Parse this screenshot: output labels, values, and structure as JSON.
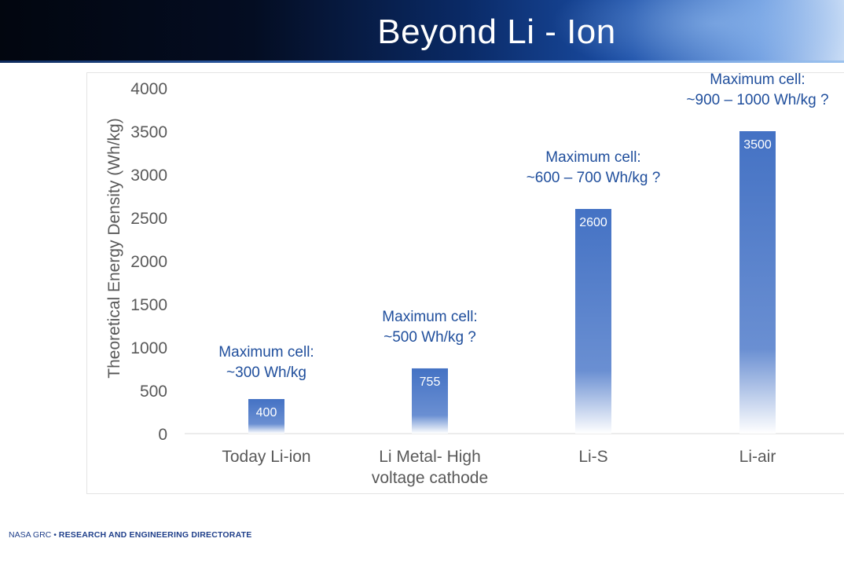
{
  "slide": {
    "title": "Beyond Li - Ion"
  },
  "footer": {
    "org": "NASA GRC",
    "separator": "•",
    "directorate": "RESEARCH AND ENGINEERING DIRECTORATE"
  },
  "chart_data": {
    "type": "bar",
    "title": "",
    "xlabel": "",
    "ylabel": "Theoretical Energy Density (Wh/kg)",
    "ylim": [
      0,
      4000
    ],
    "yticks": [
      0,
      500,
      1000,
      1500,
      2000,
      2500,
      3000,
      3500,
      4000
    ],
    "grid": false,
    "categories": [
      [
        "Today Li-ion"
      ],
      [
        "Li Metal- High",
        "voltage cathode"
      ],
      [
        "Li-S"
      ],
      [
        "Li-air"
      ]
    ],
    "values": [
      400,
      755,
      2600,
      3500
    ],
    "data_labels": [
      "400",
      "755",
      "2600",
      "3500"
    ],
    "annotations": [
      [
        "Maximum cell:",
        "~300 Wh/kg"
      ],
      [
        "Maximum cell:",
        "~500 Wh/kg ?"
      ],
      [
        "Maximum cell:",
        "~600 – 700  Wh/kg ?"
      ],
      [
        "Maximum cell:",
        "~900 – 1000 Wh/kg ?"
      ]
    ],
    "colors": {
      "bar": "#4472c4",
      "bar_fade": "#ffffff",
      "annotation": "#1f4e9c",
      "axis_text": "#595959",
      "data_label": "#ffffff"
    }
  }
}
